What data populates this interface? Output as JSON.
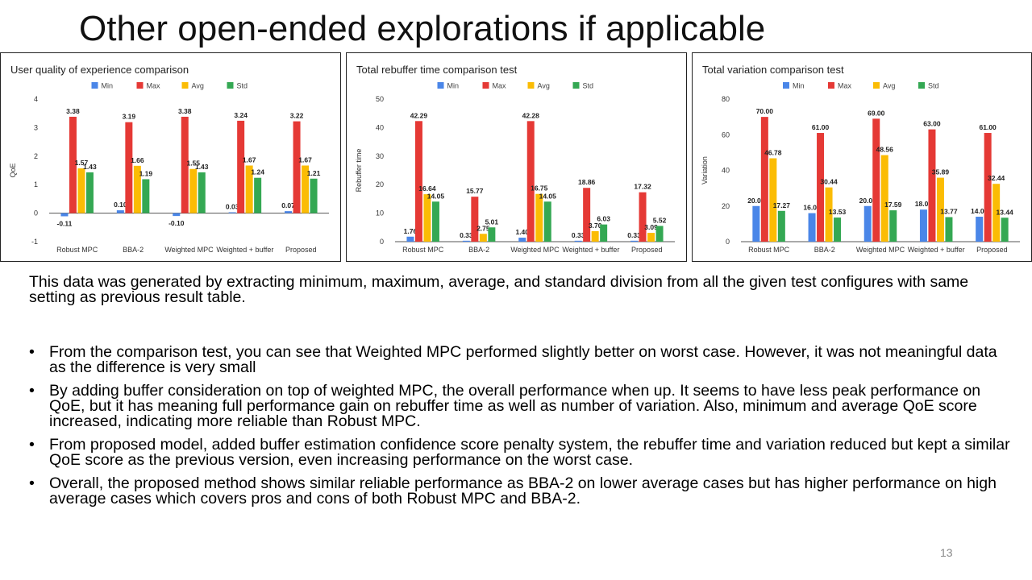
{
  "slide": {
    "title": "Other open-ended explorations if applicable",
    "intro": "This data was generated by extracting minimum, maximum, average, and standard division from all the given test configures with same setting as previous result table.",
    "bullets": [
      "From the comparison test, you can see that Weighted MPC performed slightly better on worst case. However, it was not meaningful data as the difference is very small",
      "By adding buffer consideration on top of weighted MPC, the overall performance when up. It seems to have less peak performance on QoE, but it has meaning full performance gain on rebuffer time as well as number of variation. Also, minimum and average QoE score increased, indicating more reliable than Robust MPC.",
      "From proposed model, added buffer estimation confidence score penalty system, the rebuffer time and variation reduced but kept a similar QoE score as the previous version, even increasing performance on the worst case.",
      "Overall, the proposed method shows similar reliable performance as BBA-2 on lower average cases but has higher performance on high average cases which covers pros and cons of both Robust MPC and BBA-2."
    ],
    "bullet_glyph": "•",
    "page_number": "13"
  },
  "colors": {
    "Min": "#4a86e8",
    "Max": "#e53935",
    "Avg": "#fbbc04",
    "Std": "#34a853"
  },
  "chart_data": [
    {
      "type": "bar",
      "title": "User quality of experience comparison",
      "ylabel": "QoE",
      "xlabel": "",
      "categories": [
        "Robust MPC",
        "BBA-2",
        "Weighted MPC",
        "Weighted + buffer",
        "Proposed"
      ],
      "ylim": [
        -1,
        4
      ],
      "yticks": [
        -1,
        0,
        1,
        2,
        3,
        4
      ],
      "legend_position": "top-center",
      "grid": false,
      "series": [
        {
          "name": "Min",
          "values": [
            -0.11,
            0.1,
            -0.1,
            0.03,
            0.07
          ],
          "labels": [
            "-0.11",
            "0.10",
            "-0.10",
            "0.03",
            "0.07"
          ]
        },
        {
          "name": "Max",
          "values": [
            3.38,
            3.19,
            3.38,
            3.24,
            3.22
          ],
          "labels": [
            "3.38",
            "3.19",
            "3.38",
            "3.24",
            "3.22"
          ]
        },
        {
          "name": "Avg",
          "values": [
            1.57,
            1.66,
            1.55,
            1.67,
            1.67
          ],
          "labels": [
            "1.57",
            "1.66",
            "1.55",
            "1.67",
            "1.67"
          ]
        },
        {
          "name": "Std",
          "values": [
            1.43,
            1.19,
            1.43,
            1.24,
            1.21
          ],
          "labels": [
            "1.43",
            "1.19",
            "1.43",
            "1.24",
            "1.21"
          ]
        }
      ]
    },
    {
      "type": "bar",
      "title": "Total rebuffer time comparison test",
      "ylabel": "Rebuffer time",
      "xlabel": "",
      "categories": [
        "Robust MPC",
        "BBA-2",
        "Weighted MPC",
        "Weighted + buffer",
        "Proposed"
      ],
      "ylim": [
        0,
        50
      ],
      "yticks": [
        0,
        10,
        20,
        30,
        40,
        50
      ],
      "legend_position": "top-center",
      "grid": false,
      "series": [
        {
          "name": "Min",
          "values": [
            1.76,
            0.33,
            1.4,
            0.33,
            0.33
          ],
          "labels": [
            "1.76",
            "0.33",
            "1.40",
            "0.33",
            "0.33"
          ]
        },
        {
          "name": "Max",
          "values": [
            42.29,
            15.77,
            42.28,
            18.86,
            17.32
          ],
          "labels": [
            "42.29",
            "15.77",
            "42.28",
            "18.86",
            "17.32"
          ]
        },
        {
          "name": "Avg",
          "values": [
            16.64,
            2.75,
            16.75,
            3.7,
            3.09
          ],
          "labels": [
            "16.64",
            "2.75",
            "16.75",
            "3.70",
            "3.09"
          ]
        },
        {
          "name": "Std",
          "values": [
            14.05,
            5.01,
            14.05,
            6.03,
            5.52
          ],
          "labels": [
            "14.05",
            "5.01",
            "14.05",
            "6.03",
            "5.52"
          ]
        }
      ]
    },
    {
      "type": "bar",
      "title": "Total variation comparison test",
      "ylabel": "Variation",
      "xlabel": "",
      "categories": [
        "Robust MPC",
        "BBA-2",
        "Weighted MPC",
        "Weighted + buffer",
        "Proposed"
      ],
      "ylim": [
        0,
        80
      ],
      "yticks": [
        0,
        20,
        40,
        60,
        80
      ],
      "legend_position": "top-center",
      "grid": false,
      "series": [
        {
          "name": "Min",
          "values": [
            20.0,
            16.0,
            20.0,
            18.0,
            14.0
          ],
          "labels": [
            "20.00",
            "16.00",
            "20.00",
            "18.00",
            "14.00"
          ]
        },
        {
          "name": "Max",
          "values": [
            70.0,
            61.0,
            69.0,
            63.0,
            61.0
          ],
          "labels": [
            "70.00",
            "61.00",
            "69.00",
            "63.00",
            "61.00"
          ]
        },
        {
          "name": "Avg",
          "values": [
            46.78,
            30.44,
            48.56,
            35.89,
            32.44
          ],
          "labels": [
            "46.78",
            "30.44",
            "48.56",
            "35.89",
            "32.44"
          ]
        },
        {
          "name": "Std",
          "values": [
            17.27,
            13.53,
            17.59,
            13.77,
            13.44
          ],
          "labels": [
            "17.27",
            "13.53",
            "17.59",
            "13.77",
            "13.44"
          ]
        }
      ]
    }
  ]
}
